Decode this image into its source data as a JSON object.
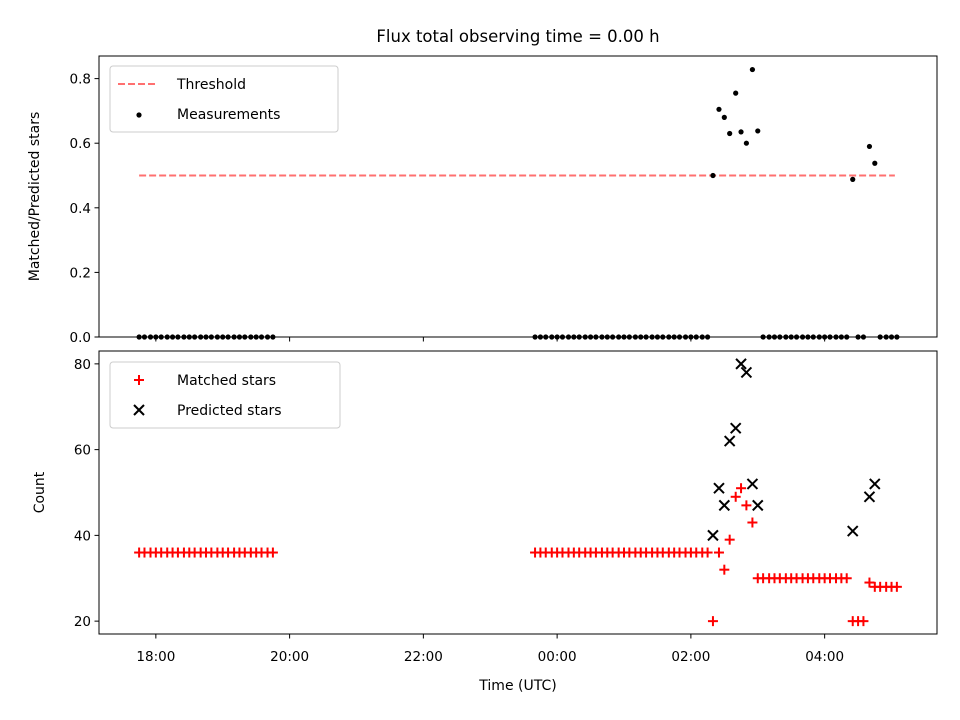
{
  "chart_data": {
    "title": "Flux total observing time = 0.00 h",
    "shared_x": {
      "xlabel": "Time (UTC)",
      "tick_values": [
        -6,
        -4,
        -2,
        0,
        2,
        4
      ],
      "tick_labels": [
        "18:00",
        "20:00",
        "22:00",
        "00:00",
        "02:00",
        "04:00"
      ],
      "xlim": [
        -6.85,
        5.68
      ],
      "units": "hours relative to 00:00 UTC"
    },
    "panels": [
      {
        "type": "scatter",
        "ylabel": "Matched/Predicted stars",
        "ylim": [
          0,
          0.87
        ],
        "yticks": [
          0.0,
          0.2,
          0.4,
          0.6,
          0.8
        ],
        "ytick_labels": [
          "0.0",
          "0.2",
          "0.4",
          "0.6",
          "0.8"
        ],
        "legend": {
          "placement": "top-left",
          "entries": [
            "Threshold",
            "Measurements"
          ]
        },
        "threshold": {
          "name": "Threshold",
          "value": 0.5,
          "x_range": [
            -6.25,
            5.05
          ],
          "color": "#ff7070",
          "style": "dashed"
        },
        "series": [
          {
            "name": "Measurements",
            "color": "#000000",
            "marker": "dot",
            "points": [
              [
                2.33,
                0.5
              ],
              [
                2.42,
                0.705
              ],
              [
                2.5,
                0.68
              ],
              [
                2.58,
                0.63
              ],
              [
                2.67,
                0.755
              ],
              [
                2.75,
                0.635
              ],
              [
                2.83,
                0.6
              ],
              [
                2.92,
                0.828
              ],
              [
                3.0,
                0.638
              ],
              [
                4.42,
                0.488
              ],
              [
                4.67,
                0.59
              ],
              [
                4.75,
                0.538
              ]
            ],
            "zero_points_x": [
              -6.25,
              -6.17,
              -6.08,
              -6.0,
              -5.92,
              -5.83,
              -5.75,
              -5.67,
              -5.58,
              -5.5,
              -5.42,
              -5.33,
              -5.25,
              -5.17,
              -5.08,
              -5.0,
              -4.92,
              -4.83,
              -4.75,
              -4.67,
              -4.58,
              -4.5,
              -4.42,
              -4.33,
              -4.25,
              -0.33,
              -0.25,
              -0.17,
              -0.08,
              0.0,
              0.08,
              0.17,
              0.25,
              0.33,
              0.42,
              0.5,
              0.58,
              0.67,
              0.75,
              0.83,
              0.92,
              1.0,
              1.08,
              1.17,
              1.25,
              1.33,
              1.42,
              1.5,
              1.58,
              1.67,
              1.75,
              1.83,
              1.92,
              2.0,
              2.08,
              2.17,
              2.25,
              3.08,
              3.17,
              3.25,
              3.33,
              3.42,
              3.5,
              3.58,
              3.67,
              3.75,
              3.83,
              3.92,
              4.0,
              4.08,
              4.17,
              4.25,
              4.33,
              4.5,
              4.58,
              4.83,
              4.92,
              5.0,
              5.08
            ]
          }
        ]
      },
      {
        "type": "scatter",
        "ylabel": "Count",
        "ylim": [
          17,
          83
        ],
        "yticks": [
          20,
          40,
          60,
          80
        ],
        "ytick_labels": [
          "20",
          "40",
          "60",
          "80"
        ],
        "legend": {
          "placement": "top-left",
          "entries": [
            "Matched stars",
            "Predicted stars"
          ]
        },
        "series": [
          {
            "name": "Matched stars",
            "color": "#ff0000",
            "marker": "plus",
            "points": [
              [
                -6.25,
                36
              ],
              [
                -6.17,
                36
              ],
              [
                -6.08,
                36
              ],
              [
                -6.0,
                36
              ],
              [
                -5.92,
                36
              ],
              [
                -5.83,
                36
              ],
              [
                -5.75,
                36
              ],
              [
                -5.67,
                36
              ],
              [
                -5.58,
                36
              ],
              [
                -5.5,
                36
              ],
              [
                -5.42,
                36
              ],
              [
                -5.33,
                36
              ],
              [
                -5.25,
                36
              ],
              [
                -5.17,
                36
              ],
              [
                -5.08,
                36
              ],
              [
                -5.0,
                36
              ],
              [
                -4.92,
                36
              ],
              [
                -4.83,
                36
              ],
              [
                -4.75,
                36
              ],
              [
                -4.67,
                36
              ],
              [
                -4.58,
                36
              ],
              [
                -4.5,
                36
              ],
              [
                -4.42,
                36
              ],
              [
                -4.33,
                36
              ],
              [
                -4.25,
                36
              ],
              [
                -0.33,
                36
              ],
              [
                -0.25,
                36
              ],
              [
                -0.17,
                36
              ],
              [
                -0.08,
                36
              ],
              [
                0.0,
                36
              ],
              [
                0.08,
                36
              ],
              [
                0.17,
                36
              ],
              [
                0.25,
                36
              ],
              [
                0.33,
                36
              ],
              [
                0.42,
                36
              ],
              [
                0.5,
                36
              ],
              [
                0.58,
                36
              ],
              [
                0.67,
                36
              ],
              [
                0.75,
                36
              ],
              [
                0.83,
                36
              ],
              [
                0.92,
                36
              ],
              [
                1.0,
                36
              ],
              [
                1.08,
                36
              ],
              [
                1.17,
                36
              ],
              [
                1.25,
                36
              ],
              [
                1.33,
                36
              ],
              [
                1.42,
                36
              ],
              [
                1.5,
                36
              ],
              [
                1.58,
                36
              ],
              [
                1.67,
                36
              ],
              [
                1.75,
                36
              ],
              [
                1.83,
                36
              ],
              [
                1.92,
                36
              ],
              [
                2.0,
                36
              ],
              [
                2.08,
                36
              ],
              [
                2.17,
                36
              ],
              [
                2.25,
                36
              ],
              [
                2.33,
                20
              ],
              [
                2.42,
                36
              ],
              [
                2.5,
                32
              ],
              [
                2.58,
                39
              ],
              [
                2.67,
                49
              ],
              [
                2.75,
                51
              ],
              [
                2.83,
                47
              ],
              [
                2.92,
                43
              ],
              [
                3.0,
                30
              ],
              [
                3.08,
                30
              ],
              [
                3.17,
                30
              ],
              [
                3.25,
                30
              ],
              [
                3.33,
                30
              ],
              [
                3.42,
                30
              ],
              [
                3.5,
                30
              ],
              [
                3.58,
                30
              ],
              [
                3.67,
                30
              ],
              [
                3.75,
                30
              ],
              [
                3.83,
                30
              ],
              [
                3.92,
                30
              ],
              [
                4.0,
                30
              ],
              [
                4.08,
                30
              ],
              [
                4.17,
                30
              ],
              [
                4.25,
                30
              ],
              [
                4.33,
                30
              ],
              [
                4.42,
                20
              ],
              [
                4.5,
                20
              ],
              [
                4.58,
                20
              ],
              [
                4.67,
                29
              ],
              [
                4.75,
                28
              ],
              [
                4.83,
                28
              ],
              [
                4.92,
                28
              ],
              [
                5.0,
                28
              ],
              [
                5.08,
                28
              ]
            ]
          },
          {
            "name": "Predicted stars",
            "color": "#000000",
            "marker": "x",
            "points": [
              [
                2.33,
                40
              ],
              [
                2.42,
                51
              ],
              [
                2.5,
                47
              ],
              [
                2.58,
                62
              ],
              [
                2.67,
                65
              ],
              [
                2.75,
                80
              ],
              [
                2.83,
                78
              ],
              [
                2.92,
                52
              ],
              [
                3.0,
                47
              ],
              [
                4.42,
                41
              ],
              [
                4.67,
                49
              ],
              [
                4.75,
                52
              ]
            ]
          }
        ]
      }
    ]
  }
}
